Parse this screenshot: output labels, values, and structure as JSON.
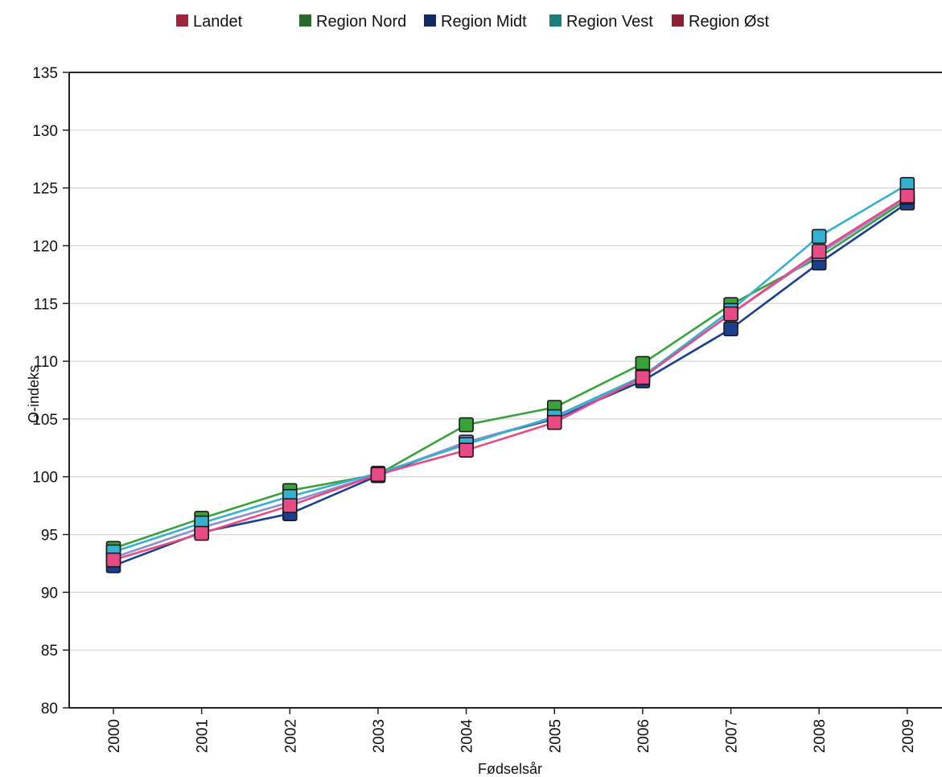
{
  "chart_data": {
    "type": "line",
    "xlabel": "Fødselsår",
    "ylabel": "O-indeks",
    "ylim": [
      80,
      135
    ],
    "yticks": [
      80,
      85,
      90,
      95,
      100,
      105,
      110,
      115,
      120,
      125,
      130,
      135
    ],
    "grid": true,
    "legend_position": "top",
    "categories": [
      "2000",
      "2001",
      "2002",
      "2003",
      "2004",
      "2005",
      "2006",
      "2007",
      "2008",
      "2009"
    ],
    "legend": [
      {
        "name": "Landet",
        "color": "#a0243c"
      },
      {
        "name": "Region Nord",
        "color": "#2a6a2a"
      },
      {
        "name": "Region Midt",
        "color": "#0f2a5e"
      },
      {
        "name": "Region Vest",
        "color": "#1f7d7d"
      },
      {
        "name": "Region Øst",
        "color": "#8e1f35"
      }
    ],
    "series": [
      {
        "name": "Region Nord",
        "line_color": "#3aa23a",
        "marker_color": "#3aa23a",
        "values": [
          93.8,
          96.4,
          98.8,
          100.2,
          104.5,
          106.0,
          109.8,
          114.9,
          119.0,
          124.0
        ]
      },
      {
        "name": "Region Midt",
        "line_color": "#1a3f8e",
        "marker_color": "#1a3f8e",
        "values": [
          92.3,
          95.2,
          96.8,
          100.1,
          103.0,
          105.0,
          108.3,
          112.8,
          118.5,
          123.7
        ]
      },
      {
        "name": "Landet",
        "line_color": "#8a8fd0",
        "marker_color": "#8a8fd0",
        "values": [
          93.0,
          95.6,
          97.8,
          100.2,
          103.0,
          105.1,
          108.6,
          114.1,
          119.3,
          124.2
        ]
      },
      {
        "name": "Region Vest",
        "line_color": "#35b0d0",
        "marker_color": "#35b0d0",
        "values": [
          93.5,
          96.0,
          98.3,
          100.3,
          102.8,
          105.2,
          108.7,
          114.4,
          120.8,
          125.3
        ]
      },
      {
        "name": "Region Øst",
        "line_color": "#e84a86",
        "marker_color": "#e84a86",
        "values": [
          92.8,
          95.1,
          97.5,
          100.2,
          102.3,
          104.7,
          108.6,
          114.1,
          119.5,
          124.3
        ]
      }
    ]
  }
}
